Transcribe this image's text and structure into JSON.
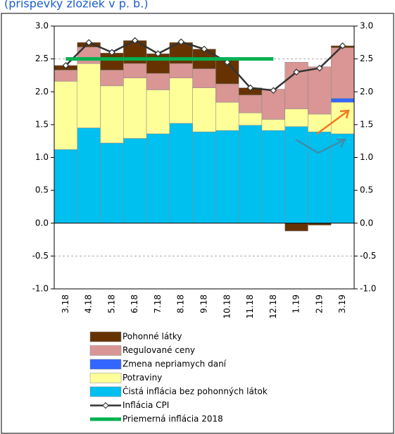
{
  "chart_data": {
    "type": "bar",
    "subtitle": "(príspevky zložiek v p. b.)",
    "categories": [
      "3.18",
      "4.18",
      "5.18",
      "6.18",
      "7.18",
      "8.18",
      "9.18",
      "10.18",
      "11.18",
      "12.18",
      "1.19",
      "2.19",
      "3.19"
    ],
    "series": [
      {
        "name": "Čistá inflácia bez pohonných látok",
        "color": "#00c0f0",
        "values": [
          1.12,
          1.45,
          1.22,
          1.29,
          1.36,
          1.52,
          1.39,
          1.41,
          1.49,
          1.41,
          1.47,
          1.39,
          1.36
        ]
      },
      {
        "name": "Potraviny",
        "color": "#ffff99",
        "values": [
          1.04,
          0.98,
          0.87,
          0.92,
          0.67,
          0.69,
          0.67,
          0.43,
          0.19,
          0.17,
          0.27,
          0.27,
          0.48
        ]
      },
      {
        "name": "Zmena nepriamych daní",
        "color": "#3366ff",
        "values": [
          0,
          0,
          0,
          0,
          0,
          0,
          0,
          0,
          0,
          0,
          0,
          0,
          0.06
        ]
      },
      {
        "name": "Regulované ceny",
        "color": "#d99694",
        "values": [
          0.17,
          0.25,
          0.24,
          0.22,
          0.25,
          0.22,
          0.29,
          0.28,
          0.27,
          0.46,
          0.71,
          0.72,
          0.77
        ]
      },
      {
        "name": "Pohonné látky",
        "color": "#663300",
        "values": [
          0.07,
          0.07,
          0.26,
          0.35,
          0.3,
          0.32,
          0.3,
          0.36,
          0.11,
          0,
          -0.12,
          -0.03,
          0.03
        ]
      },
      {
        "name": "Inflácia CPI",
        "color": "#333333",
        "kind": "line",
        "values": [
          2.4,
          2.75,
          2.6,
          2.78,
          2.58,
          2.76,
          2.65,
          2.45,
          2.06,
          2.02,
          2.3,
          2.36,
          2.7
        ]
      },
      {
        "name": "Priemerná inflácia 2018",
        "color": "#00b050",
        "kind": "line",
        "values": [
          2.5,
          2.5,
          2.5,
          2.5,
          2.5,
          2.5,
          2.5,
          2.5,
          2.5,
          2.5,
          null,
          null,
          null
        ]
      }
    ],
    "legend_order": [
      4,
      3,
      2,
      1,
      0,
      5,
      6
    ],
    "ylim": [
      -1,
      3
    ],
    "yticks": [
      {
        "value": -1,
        "label": "-1.0"
      },
      {
        "value": -0.5,
        "label": "-0.5"
      },
      {
        "value": 0,
        "label": "0.0"
      },
      {
        "value": 0.5,
        "label": "0.5"
      },
      {
        "value": 1,
        "label": "1.0"
      },
      {
        "value": 1.5,
        "label": "1.5"
      },
      {
        "value": 2,
        "label": "2.0"
      },
      {
        "value": 2.5,
        "label": "2.5"
      },
      {
        "value": 3,
        "label": "3.0"
      }
    ],
    "grid": true
  }
}
